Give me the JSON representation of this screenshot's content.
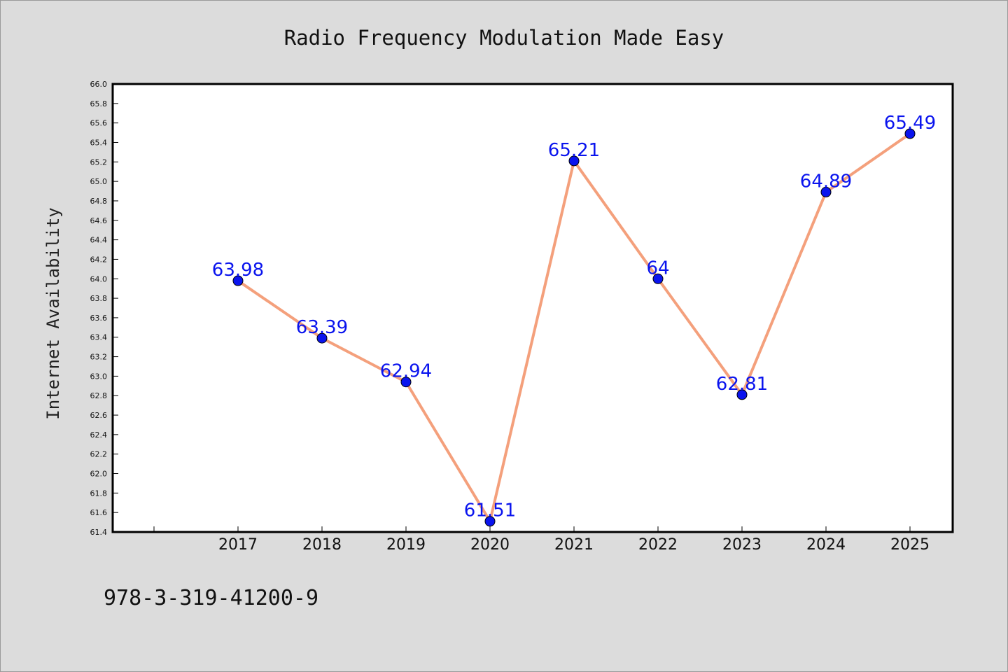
{
  "chart_data": {
    "type": "line",
    "title": "Radio Frequency Modulation Made Easy",
    "xlabel": "",
    "ylabel": "Internet Availability",
    "x": [
      "2017",
      "2018",
      "2019",
      "2020",
      "2021",
      "2022",
      "2023",
      "2024",
      "2025"
    ],
    "series": [
      {
        "values": [
          63.98,
          63.39,
          62.94,
          61.51,
          65.21,
          64,
          62.81,
          64.89,
          65.49
        ],
        "line_color": "#f4a07c",
        "marker_color": "#0a14ee",
        "label_color": "#0a14ee"
      }
    ],
    "ylim": [
      61.4,
      66.0
    ],
    "y_ticks": [
      "61.4",
      "61.6",
      "61.8",
      "62.0",
      "62.2",
      "62.4",
      "62.6",
      "62.8",
      "63.0",
      "63.2",
      "63.4",
      "63.6",
      "63.8",
      "64.0",
      "64.2",
      "64.4",
      "64.6",
      "64.8",
      "65.0",
      "65.2",
      "65.4",
      "65.6",
      "65.8",
      "66.0"
    ],
    "grid": false,
    "legend": "none"
  },
  "footer": {
    "code": "978-3-319-41200-9"
  },
  "colors": {
    "background": "#dcdcdc",
    "plot_background": "#ffffff",
    "axis": "#000000"
  }
}
